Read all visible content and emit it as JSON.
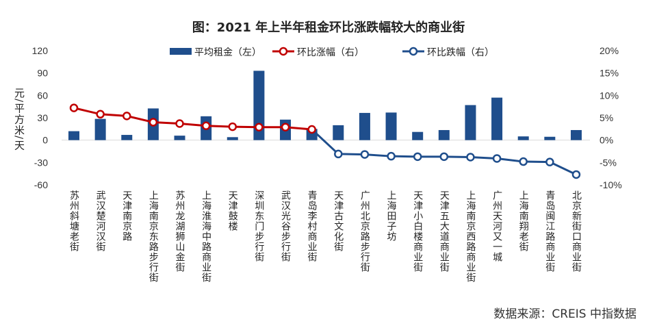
{
  "chart_data": {
    "type": "bar+line",
    "title": "图：2021 年上半年租金环比涨跌幅较大的商业街",
    "ylabel": "元/平方米/天",
    "y2label": "",
    "ylim": [
      -60,
      120
    ],
    "yticks": [
      120,
      90,
      60,
      30,
      0,
      -30,
      -60
    ],
    "y2lim": [
      -10,
      20
    ],
    "y2ticks": [
      "20%",
      "15%",
      "10%",
      "5%",
      "0%",
      "-5%",
      "-10%"
    ],
    "legend_position": "top",
    "grid": false,
    "categories": [
      "苏州斜塘老街",
      "武汉楚河汉街",
      "天津南京路",
      "上海南京东路步行街",
      "苏州龙湖狮山金街",
      "上海淮海中路商业街",
      "天津鼓楼",
      "深圳东门步行街",
      "武汉光谷步行街",
      "青岛李村商业街",
      "天津古文化街",
      "广州北京路步行街",
      "上海田子坊",
      "天津小白楼商业街",
      "天津五大道商业街",
      "上海南京西路商业街",
      "广州天河又一城",
      "上海南翔老街",
      "青岛闽江路商业街",
      "北京新街口商业街"
    ],
    "series": [
      {
        "name": "平均租金（左）",
        "type": "bar",
        "axis": "left",
        "color": "#1F4E8C",
        "values": [
          12,
          28.5,
          7,
          42.5,
          6,
          32,
          4,
          93,
          27.5,
          15,
          20,
          36.5,
          37,
          11,
          13.5,
          47,
          57,
          5,
          4.5,
          13.5
        ]
      },
      {
        "name": "环比涨幅（右）",
        "type": "line",
        "axis": "right",
        "color": "#C00000",
        "unit": "%",
        "values": [
          7.2,
          5.8,
          5.4,
          4.0,
          3.7,
          3.2,
          3.0,
          2.9,
          2.9,
          2.4,
          null,
          null,
          null,
          null,
          null,
          null,
          null,
          null,
          null,
          null
        ]
      },
      {
        "name": "环比跌幅（右）",
        "type": "line",
        "axis": "right",
        "color": "#1F4E8C",
        "unit": "%",
        "values": [
          null,
          null,
          null,
          null,
          null,
          null,
          null,
          null,
          null,
          2.4,
          -3.1,
          -3.2,
          -3.6,
          -3.7,
          -3.7,
          -3.8,
          -4.1,
          -4.8,
          -4.9,
          -7.7
        ]
      }
    ]
  },
  "source": "数据来源：CREIS 中指数据"
}
